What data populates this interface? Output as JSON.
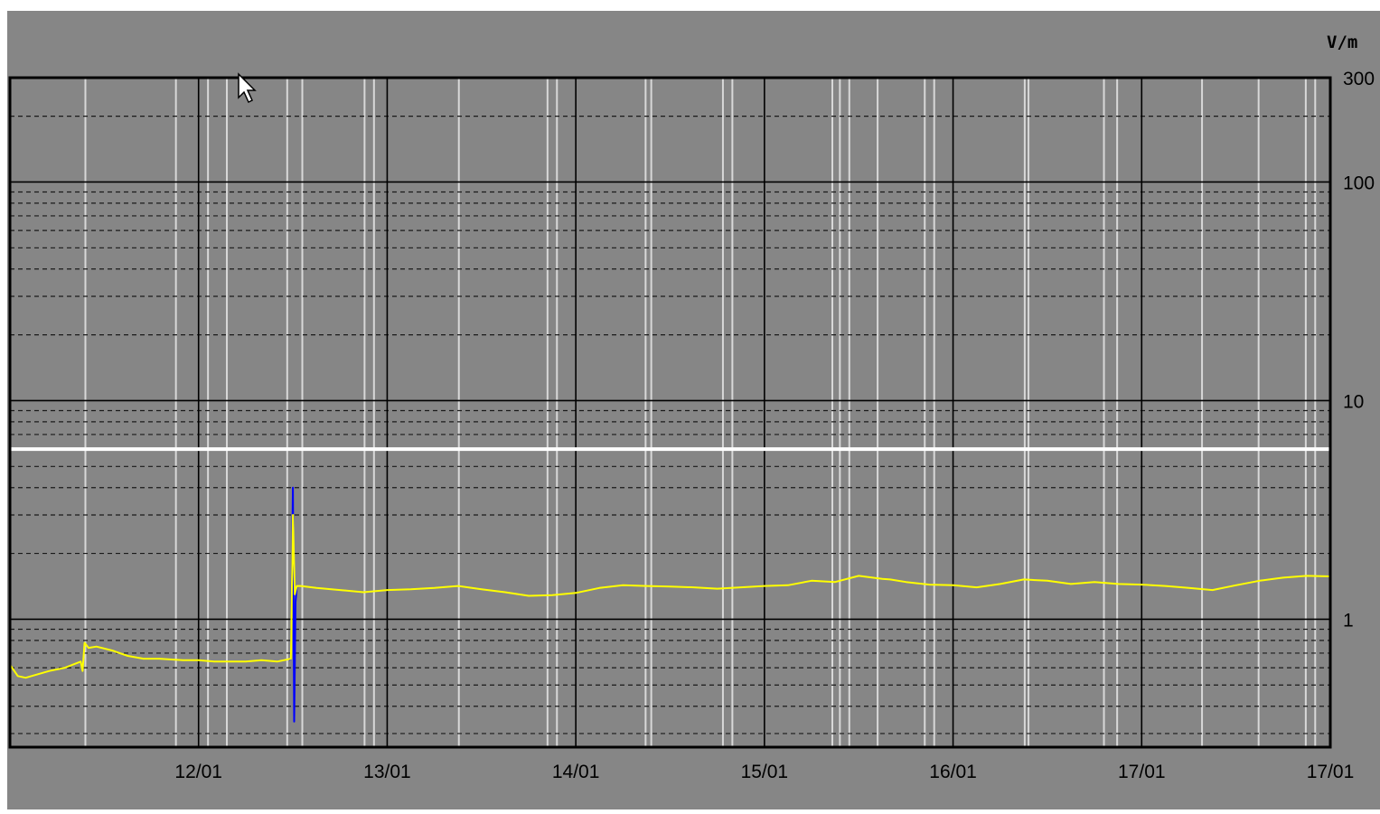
{
  "chart_data": {
    "type": "line",
    "title": "",
    "xlabel": "",
    "ylabel": "V/m",
    "y_scale": "log",
    "ylim": [
      0.26,
      300
    ],
    "y_ticks": [
      1,
      10,
      100,
      300
    ],
    "y_tick_labels": [
      "1",
      "10",
      "100",
      "300"
    ],
    "x_tick_labels": [
      "12/01",
      "13/01",
      "14/01",
      "15/01",
      "16/01",
      "17/01",
      "17/01"
    ],
    "xlim_days": [
      11.0,
      18.0
    ],
    "grid": true,
    "threshold_line": {
      "value": 6,
      "color": "#ffffff"
    },
    "series": [
      {
        "color": "#ffff00",
        "x": [
          "11/01 00:00",
          "11/01 01:00",
          "11/01 02:00",
          "11/01 05:00",
          "11/01 07:00",
          "11/01 09:00",
          "11/01 09:15",
          "11/01 09:30",
          "11/01 10:00",
          "11/01 11:00",
          "11/01 13:00",
          "11/01 15:00",
          "11/01 17:00",
          "11/01 19:00",
          "11/01 22:00",
          "12/01 00:00",
          "12/01 02:00",
          "12/01 04:00",
          "12/01 06:00",
          "12/01 08:00",
          "12/01 10:00",
          "12/01 11:45",
          "12/01 12:00",
          "12/01 12:15",
          "12/01 12:30",
          "12/01 13:00",
          "12/01 15:00",
          "12/01 18:00",
          "12/01 21:00",
          "13/01 00:00",
          "13/01 03:00",
          "13/01 06:00",
          "13/01 09:00",
          "13/01 12:00",
          "13/01 15:00",
          "13/01 18:00",
          "13/01 21:00",
          "14/01 00:00",
          "14/01 03:00",
          "14/01 06:00",
          "14/01 09:00",
          "14/01 12:00",
          "14/01 15:00",
          "14/01 18:00",
          "14/01 21:00",
          "15/01 00:00",
          "15/01 03:00",
          "15/01 06:00",
          "15/01 09:00",
          "15/01 12:00",
          "15/01 15:00",
          "15/01 16:00",
          "15/01 18:00",
          "15/01 21:00",
          "16/01 00:00",
          "16/01 03:00",
          "16/01 06:00",
          "16/01 09:00",
          "16/01 12:00",
          "16/01 15:00",
          "16/01 18:00",
          "16/01 21:00",
          "17/01 00:00",
          "17/01 03:00",
          "17/01 06:00",
          "17/01 09:00",
          "17/01 12:00",
          "17/01 15:00",
          "17/01 18:00",
          "17/01 21:00",
          "18/01 00:00"
        ],
        "values": [
          0.62,
          0.55,
          0.54,
          0.58,
          0.6,
          0.64,
          0.58,
          0.78,
          0.74,
          0.75,
          0.72,
          0.68,
          0.66,
          0.66,
          0.65,
          0.65,
          0.64,
          0.64,
          0.64,
          0.65,
          0.64,
          0.66,
          3.0,
          1.3,
          1.42,
          1.42,
          1.39,
          1.36,
          1.33,
          1.36,
          1.37,
          1.39,
          1.42,
          1.37,
          1.33,
          1.28,
          1.29,
          1.32,
          1.39,
          1.43,
          1.42,
          1.41,
          1.4,
          1.38,
          1.4,
          1.42,
          1.43,
          1.5,
          1.48,
          1.58,
          1.53,
          1.52,
          1.48,
          1.44,
          1.43,
          1.4,
          1.45,
          1.52,
          1.5,
          1.45,
          1.48,
          1.45,
          1.44,
          1.42,
          1.39,
          1.36,
          1.43,
          1.5,
          1.55,
          1.58,
          1.57
        ]
      },
      {
        "color": "#0000ff",
        "x": [
          "12/01 11:30",
          "12/01 11:45",
          "12/01 12:00",
          "12/01 12:10",
          "12/01 12:20",
          "12/01 12:30"
        ],
        "values": [
          0.65,
          0.66,
          4.0,
          0.34,
          1.2,
          1.4
        ]
      }
    ]
  }
}
